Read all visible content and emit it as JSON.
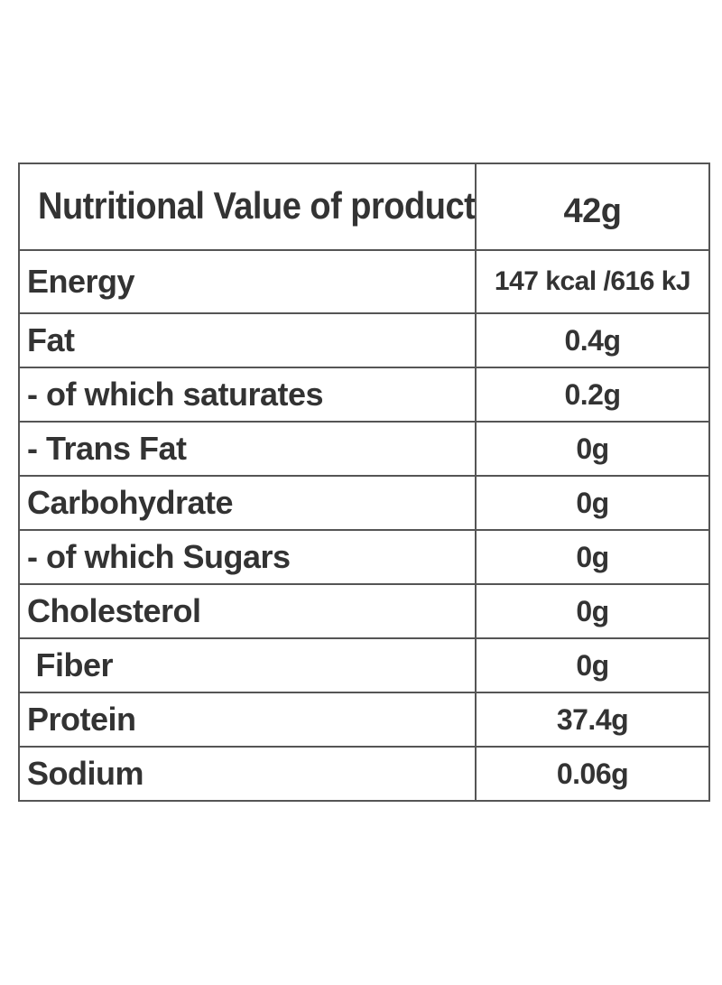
{
  "table": {
    "header": {
      "label": "Nutritional Value of product",
      "value": "42g"
    },
    "rows": [
      {
        "label": "Energy",
        "value": "147 kcal /616 kJ"
      },
      {
        "label": "Fat",
        "value": "0.4g"
      },
      {
        "label": "- of which saturates",
        "value": "0.2g"
      },
      {
        "label": "- Trans Fat",
        "value": "0g"
      },
      {
        "label": "Carbohydrate",
        "value": "0g"
      },
      {
        "label": "- of which Sugars",
        "value": "0g"
      },
      {
        "label": "Cholesterol",
        "value": "0g"
      },
      {
        "label": " Fiber",
        "value": "0g"
      },
      {
        "label": "Protein",
        "value": "37.4g"
      },
      {
        "label": "Sodium",
        "value": "0.06g"
      }
    ]
  }
}
